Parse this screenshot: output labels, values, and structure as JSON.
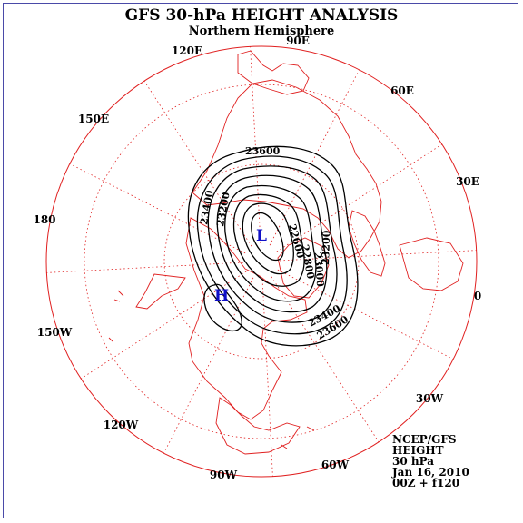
{
  "title": "GFS 30-hPa HEIGHT ANALYSIS",
  "subtitle": "Northern Hemisphere",
  "longitude_labels": {
    "lon_90e": "90E",
    "lon_120e": "120E",
    "lon_60e": "60E",
    "lon_150e": "150E",
    "lon_30e": "30E",
    "lon_180": "180",
    "lon_0": "0",
    "lon_150w": "150W",
    "lon_30w": "30W",
    "lon_120w": "120W",
    "lon_60w": "60W",
    "lon_90w": "90W"
  },
  "info_block": {
    "source": "NCEP/GFS",
    "field": "HEIGHT",
    "level": "30 hPa",
    "date": "Jan 16, 2010",
    "run": "00Z + f120"
  },
  "pressure_centers": {
    "low": "L",
    "high": "H"
  },
  "contour_labels": {
    "c1": "23600",
    "c2": "23400",
    "c3": "23200",
    "c4": "22600",
    "c5": "22800",
    "c6": "23000",
    "c7": "23200",
    "c8": "23400",
    "c9": "23600"
  },
  "colors": {
    "map_lines": "#e02020",
    "contours": "#000000",
    "symbols": "#1010c8",
    "frame": "#4a4aa8"
  }
}
